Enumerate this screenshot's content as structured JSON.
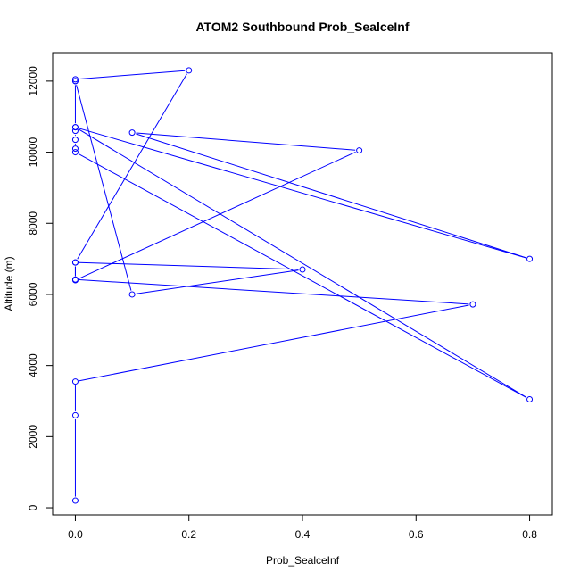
{
  "chart_data": {
    "type": "line",
    "title": "ATOM2 Southbound Prob_SealceInf",
    "xlabel": "Prob_SealceInf",
    "ylabel": "Altitude (m)",
    "xlim": [
      -0.04,
      0.84
    ],
    "ylim": [
      -200,
      12800
    ],
    "x_ticks": [
      0,
      0.2,
      0.4,
      0.6,
      0.8
    ],
    "x_tick_labels": [
      "0.0",
      "0.2",
      "0.4",
      "0.6",
      "0.8"
    ],
    "y_ticks": [
      0,
      2000,
      4000,
      6000,
      8000,
      10000,
      12000
    ],
    "y_tick_labels": [
      "0",
      "2000",
      "4000",
      "6000",
      "8000",
      "10000",
      "12000"
    ],
    "grid": false,
    "series_color": "#0000ff",
    "x": [
      0,
      0,
      0,
      0.7,
      0,
      0,
      0.4,
      0.1,
      0,
      0,
      0.8,
      0,
      0,
      0,
      0,
      0,
      0.8,
      0.1,
      0.5,
      0,
      0,
      0.2,
      0,
      0
    ],
    "y": [
      200,
      2600,
      3550,
      5720,
      6420,
      6900,
      6700,
      6000,
      12000,
      10700,
      3050,
      10000,
      10100,
      10350,
      10600,
      10700,
      7000,
      10550,
      10050,
      6400,
      6900,
      12300,
      12050,
      12000
    ]
  }
}
